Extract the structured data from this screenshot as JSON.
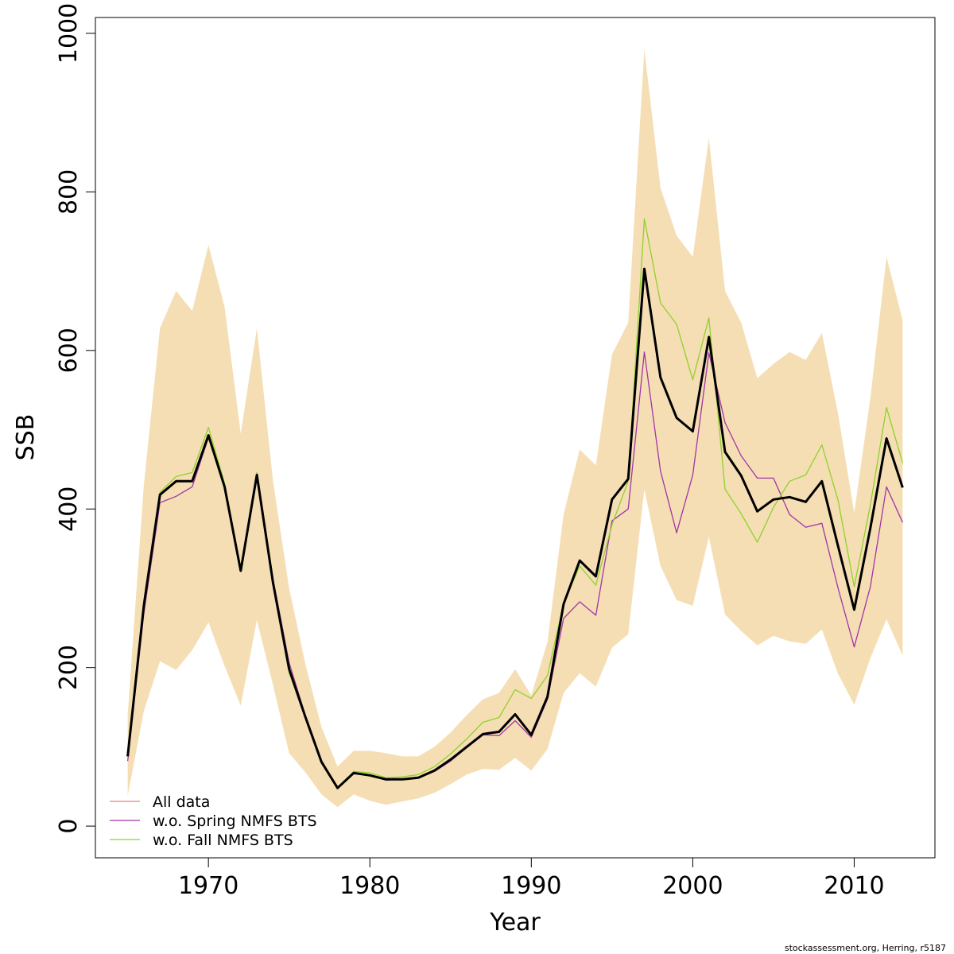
{
  "chart_data": {
    "type": "line",
    "xlabel": "Year",
    "ylabel": "SSB",
    "xlim": [
      1963,
      2015
    ],
    "ylim": [
      -40,
      1020
    ],
    "x_ticks": [
      1970,
      1980,
      1990,
      2000,
      2010
    ],
    "y_ticks": [
      0,
      200,
      400,
      600,
      800,
      1000
    ],
    "grid": false,
    "legend_position": "bottom-left",
    "years": [
      1965,
      1966,
      1967,
      1968,
      1969,
      1970,
      1971,
      1972,
      1973,
      1974,
      1975,
      1976,
      1977,
      1978,
      1979,
      1980,
      1981,
      1982,
      1983,
      1984,
      1985,
      1986,
      1987,
      1988,
      1989,
      1990,
      1991,
      1992,
      1993,
      1994,
      1995,
      1996,
      1997,
      1998,
      1999,
      2000,
      2001,
      2002,
      2003,
      2004,
      2005,
      2006,
      2007,
      2008,
      2009,
      2010,
      2011,
      2012,
      2013
    ],
    "band": {
      "color": "#f5deb3",
      "upper": [
        140,
        430,
        628,
        675,
        650,
        733,
        655,
        495,
        628,
        435,
        300,
        205,
        125,
        75,
        95,
        95,
        92,
        88,
        88,
        100,
        118,
        140,
        160,
        168,
        198,
        165,
        232,
        393,
        475,
        455,
        595,
        635,
        980,
        805,
        745,
        718,
        868,
        675,
        635,
        565,
        583,
        598,
        588,
        622,
        520,
        395,
        540,
        718,
        638
      ],
      "lower": [
        38,
        145,
        208,
        197,
        222,
        257,
        202,
        152,
        260,
        178,
        92,
        68,
        40,
        24,
        40,
        32,
        27,
        31,
        35,
        42,
        53,
        65,
        72,
        71,
        86,
        70,
        97,
        168,
        193,
        176,
        225,
        242,
        425,
        328,
        285,
        278,
        365,
        267,
        246,
        228,
        240,
        233,
        230,
        248,
        192,
        153,
        212,
        261,
        215
      ]
    },
    "series": [
      {
        "name": "All data",
        "color": "#e8837f",
        "width": 1.3,
        "legend": true,
        "values": [
          88,
          278,
          418,
          435,
          435,
          493,
          428,
          322,
          443,
          307,
          198,
          138,
          81,
          48,
          67,
          64,
          59,
          59,
          61,
          70,
          84,
          100,
          116,
          119,
          141,
          115,
          163,
          280,
          335,
          315,
          412,
          438,
          703,
          566,
          515,
          498,
          617,
          472,
          442,
          397,
          412,
          415,
          409,
          435,
          353,
          273,
          376,
          489,
          427
        ]
      },
      {
        "name": "w.o. Spring NMFS BTS",
        "color": "#a035a8",
        "width": 1.3,
        "legend": true,
        "values": [
          82,
          268,
          408,
          416,
          428,
          490,
          428,
          322,
          440,
          312,
          206,
          140,
          83,
          48,
          66,
          64,
          58,
          59,
          61,
          69,
          82,
          99,
          115,
          114,
          133,
          112,
          160,
          262,
          283,
          266,
          385,
          400,
          598,
          448,
          370,
          443,
          597,
          509,
          467,
          439,
          439,
          393,
          377,
          382,
          300,
          226,
          302,
          428,
          383
        ]
      },
      {
        "name": "w.o. Fall NMFS BTS",
        "color": "#8ed22a",
        "width": 1.3,
        "legend": true,
        "values": [
          89,
          280,
          421,
          441,
          446,
          503,
          432,
          324,
          446,
          306,
          193,
          137,
          82,
          49,
          69,
          67,
          61,
          62,
          65,
          75,
          91,
          110,
          131,
          137,
          172,
          161,
          190,
          281,
          328,
          304,
          380,
          435,
          766,
          660,
          633,
          563,
          641,
          425,
          394,
          358,
          402,
          435,
          443,
          481,
          411,
          302,
          405,
          528,
          458
        ]
      },
      {
        "name": "",
        "color": "#000000",
        "width": 3,
        "legend": false,
        "values": [
          88,
          278,
          418,
          435,
          435,
          493,
          428,
          322,
          443,
          307,
          198,
          138,
          81,
          48,
          67,
          64,
          59,
          59,
          61,
          70,
          84,
          100,
          116,
          119,
          141,
          115,
          163,
          280,
          335,
          315,
          412,
          438,
          703,
          566,
          515,
          498,
          617,
          472,
          442,
          397,
          412,
          415,
          409,
          435,
          353,
          273,
          376,
          489,
          427
        ]
      }
    ]
  },
  "credit": "stockassessment.org, Herring, r5187"
}
